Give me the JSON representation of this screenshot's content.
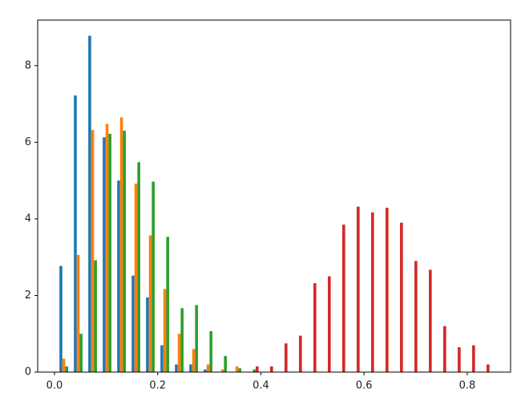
{
  "chart_data": {
    "type": "histogram",
    "bins": [
      0.0068,
      0.0348,
      0.0627,
      0.0907,
      0.1187,
      0.1467,
      0.1746,
      0.2026,
      0.2306,
      0.2585,
      0.2865,
      0.3145,
      0.3424,
      0.3704,
      0.3984,
      0.4264,
      0.4543,
      0.4823,
      0.5103,
      0.5382,
      0.5662,
      0.5942,
      0.6221,
      0.6501,
      0.6781,
      0.7061,
      0.734,
      0.762,
      0.79,
      0.8179,
      0.8459
    ],
    "series": [
      {
        "color": "#1f77b4",
        "values": [
          2.77,
          7.22,
          8.78,
          6.13,
          5.0,
          2.52,
          1.95,
          0.7,
          0.2,
          0.2,
          0.07,
          0,
          0,
          0,
          0,
          0,
          0,
          0,
          0,
          0,
          0,
          0,
          0,
          0,
          0,
          0,
          0,
          0,
          0,
          0
        ]
      },
      {
        "color": "#ff7f0e",
        "values": [
          0.35,
          3.06,
          6.32,
          6.48,
          6.65,
          4.92,
          3.57,
          2.17,
          1.0,
          0.6,
          0.2,
          0.07,
          0.15,
          0,
          0,
          0,
          0,
          0,
          0,
          0,
          0,
          0,
          0,
          0,
          0,
          0,
          0,
          0,
          0,
          0
        ]
      },
      {
        "color": "#2ca02c",
        "values": [
          0.15,
          1.0,
          2.92,
          6.22,
          6.3,
          5.48,
          4.97,
          3.53,
          1.67,
          1.75,
          1.07,
          0.42,
          0.1,
          0.07,
          0,
          0,
          0,
          0,
          0,
          0,
          0,
          0,
          0,
          0,
          0,
          0,
          0,
          0,
          0,
          0
        ]
      },
      {
        "color": "#d62728",
        "values": [
          0,
          0,
          0,
          0,
          0,
          0,
          0,
          0,
          0,
          0,
          0,
          0,
          0,
          0.15,
          0.15,
          0.75,
          0.95,
          2.32,
          2.5,
          3.85,
          4.32,
          4.17,
          4.29,
          3.9,
          2.9,
          2.67,
          1.2,
          0.65,
          0.7,
          0.2
        ]
      }
    ],
    "xlim": [
      -0.0326,
      0.884
    ],
    "xticks": [
      {
        "value": 0,
        "label": "0.0"
      },
      0.2,
      0.4,
      0.6,
      0.8
    ],
    "ylim": [
      0,
      9.19
    ],
    "yticks": [
      0,
      2,
      4,
      6,
      8
    ]
  }
}
